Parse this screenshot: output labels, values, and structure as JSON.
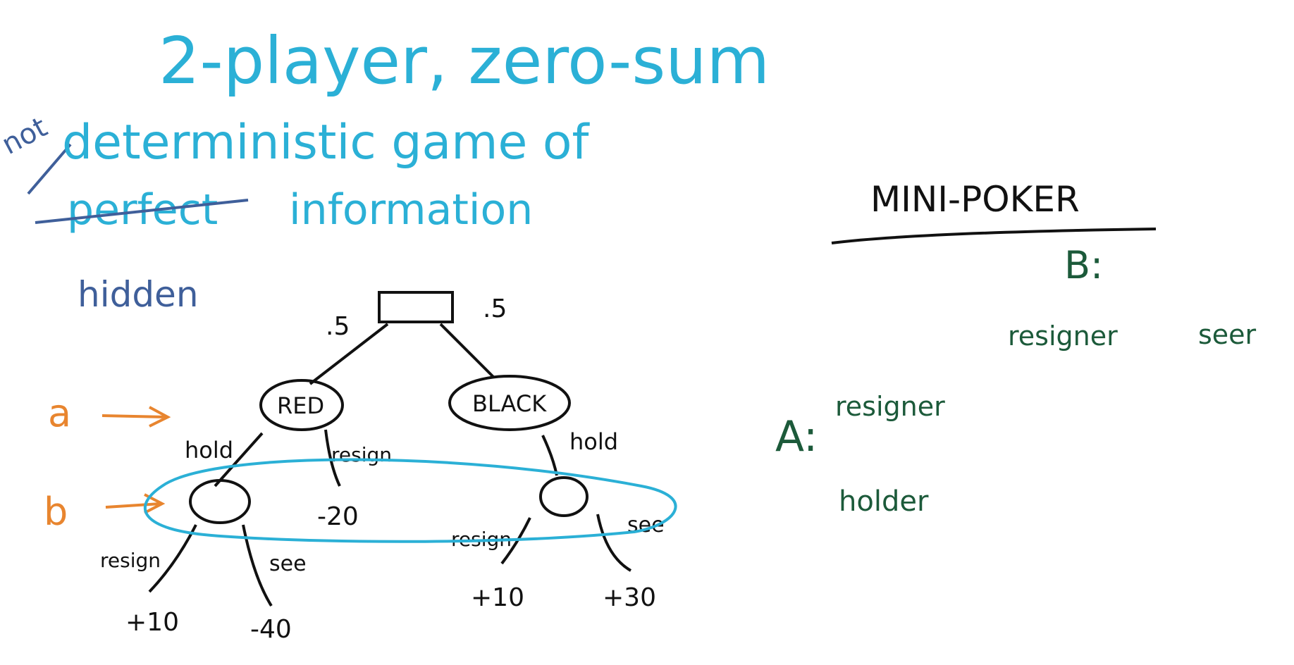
{
  "colors": {
    "cyan": "#2bb0d6",
    "navy": "#3f5f9a",
    "green": "#1c5a3a",
    "orange": "#e8852f",
    "ink": "#111111"
  },
  "heading": {
    "line1": "2-player, zero-sum",
    "line2": "deterministic game of",
    "line3_struck": "perfect",
    "line3_rest": "information",
    "insert_not": "not",
    "insert_hidden": "hidden"
  },
  "tree": {
    "root_left_prob": ".5",
    "root_right_prob": ".5",
    "node_red": "RED",
    "node_black": "BLACK",
    "label_a": "a",
    "label_b": "b",
    "red_hold": "hold",
    "red_resign": "resign",
    "red_resign_value": "-20",
    "black_hold": "hold",
    "left_resign": "resign",
    "left_see": "see",
    "left_resign_value": "+10",
    "left_see_value": "-40",
    "right_resign": "resign",
    "right_see": "see",
    "right_resign_value": "+10",
    "right_see_value": "+30"
  },
  "matrix": {
    "title": "MINI-POKER",
    "player_b": "B:",
    "player_a": "A:",
    "col1": "resigner",
    "col2": "seer",
    "row1": "resigner",
    "row2": "holder"
  }
}
